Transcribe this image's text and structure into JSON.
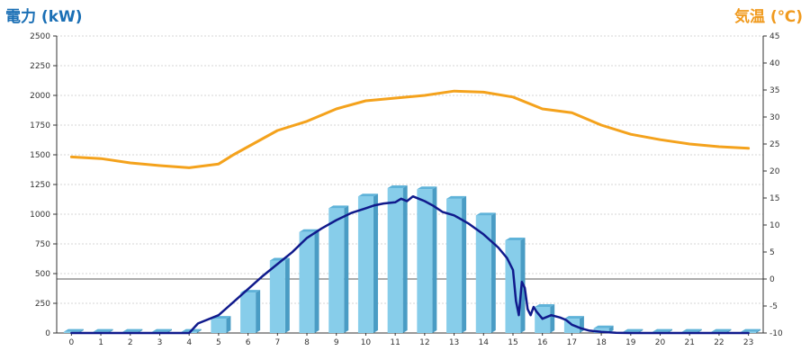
{
  "chart_data": {
    "type": "bar+line",
    "left_axis_title": "電力 (kW)",
    "right_axis_title": "気温 (℃)",
    "x": [
      0,
      1,
      2,
      3,
      4,
      5,
      6,
      7,
      8,
      9,
      10,
      11,
      12,
      13,
      14,
      15,
      16,
      17,
      18,
      19,
      20,
      21,
      22,
      23
    ],
    "left_ylim": [
      0,
      2500
    ],
    "left_yticks": [
      0,
      250,
      500,
      750,
      1000,
      1250,
      1500,
      1750,
      2000,
      2250,
      2500
    ],
    "right_ylim": [
      -10,
      45
    ],
    "right_yticks": [
      -10,
      -5,
      0,
      5,
      10,
      15,
      20,
      25,
      30,
      35,
      40,
      45
    ],
    "grid": true,
    "colors": {
      "bar": "#87cdea",
      "bar_side": "#4a9cc4",
      "bar_top": "#5fb3d9",
      "power_line": "#101a8c",
      "temp_line": "#f4a21c",
      "left_title": "#1a6fb5",
      "right_title": "#f09a1e"
    },
    "bars": {
      "axis": "left",
      "values": [
        10,
        10,
        10,
        10,
        10,
        120,
        340,
        610,
        850,
        1050,
        1150,
        1220,
        1210,
        1130,
        990,
        780,
        220,
        120,
        40,
        10,
        10,
        10,
        10,
        10
      ]
    },
    "power_line": {
      "axis": "left",
      "points": [
        [
          0,
          0
        ],
        [
          1,
          0
        ],
        [
          2,
          0
        ],
        [
          3,
          0
        ],
        [
          4,
          0
        ],
        [
          4.3,
          80
        ],
        [
          5,
          150
        ],
        [
          5.5,
          260
        ],
        [
          6,
          370
        ],
        [
          6.5,
          480
        ],
        [
          7,
          580
        ],
        [
          7.5,
          680
        ],
        [
          8,
          800
        ],
        [
          8.5,
          880
        ],
        [
          9,
          950
        ],
        [
          9.5,
          1010
        ],
        [
          10,
          1050
        ],
        [
          10.3,
          1075
        ],
        [
          10.6,
          1090
        ],
        [
          11,
          1100
        ],
        [
          11.2,
          1130
        ],
        [
          11.4,
          1110
        ],
        [
          11.6,
          1150
        ],
        [
          11.8,
          1130
        ],
        [
          12,
          1110
        ],
        [
          12.3,
          1070
        ],
        [
          12.6,
          1020
        ],
        [
          13,
          990
        ],
        [
          13.5,
          920
        ],
        [
          14,
          830
        ],
        [
          14.5,
          720
        ],
        [
          14.8,
          630
        ],
        [
          15,
          530
        ],
        [
          15.1,
          270
        ],
        [
          15.2,
          150
        ],
        [
          15.3,
          430
        ],
        [
          15.4,
          380
        ],
        [
          15.5,
          200
        ],
        [
          15.6,
          150
        ],
        [
          15.7,
          220
        ],
        [
          15.8,
          180
        ],
        [
          16,
          120
        ],
        [
          16.3,
          150
        ],
        [
          16.6,
          130
        ],
        [
          16.8,
          110
        ],
        [
          17,
          70
        ],
        [
          17.3,
          40
        ],
        [
          17.6,
          20
        ],
        [
          18,
          10
        ],
        [
          18.5,
          2
        ],
        [
          19,
          0
        ],
        [
          20,
          0
        ],
        [
          21,
          0
        ],
        [
          22,
          0
        ],
        [
          23,
          0
        ]
      ]
    },
    "temp_line": {
      "axis": "right",
      "points": [
        [
          0,
          22.6
        ],
        [
          1,
          22.3
        ],
        [
          2,
          21.5
        ],
        [
          3,
          21.0
        ],
        [
          4,
          20.6
        ],
        [
          5,
          21.3
        ],
        [
          5.5,
          23.0
        ],
        [
          6,
          24.5
        ],
        [
          7,
          27.5
        ],
        [
          8,
          29.2
        ],
        [
          9,
          31.5
        ],
        [
          10,
          33.0
        ],
        [
          11,
          33.5
        ],
        [
          12,
          34.0
        ],
        [
          13,
          34.8
        ],
        [
          14,
          34.6
        ],
        [
          15,
          33.7
        ],
        [
          16,
          31.5
        ],
        [
          17,
          30.8
        ],
        [
          18,
          28.5
        ],
        [
          19,
          26.8
        ],
        [
          20,
          25.8
        ],
        [
          21,
          25.0
        ],
        [
          22,
          24.5
        ],
        [
          23,
          24.2
        ]
      ]
    }
  }
}
